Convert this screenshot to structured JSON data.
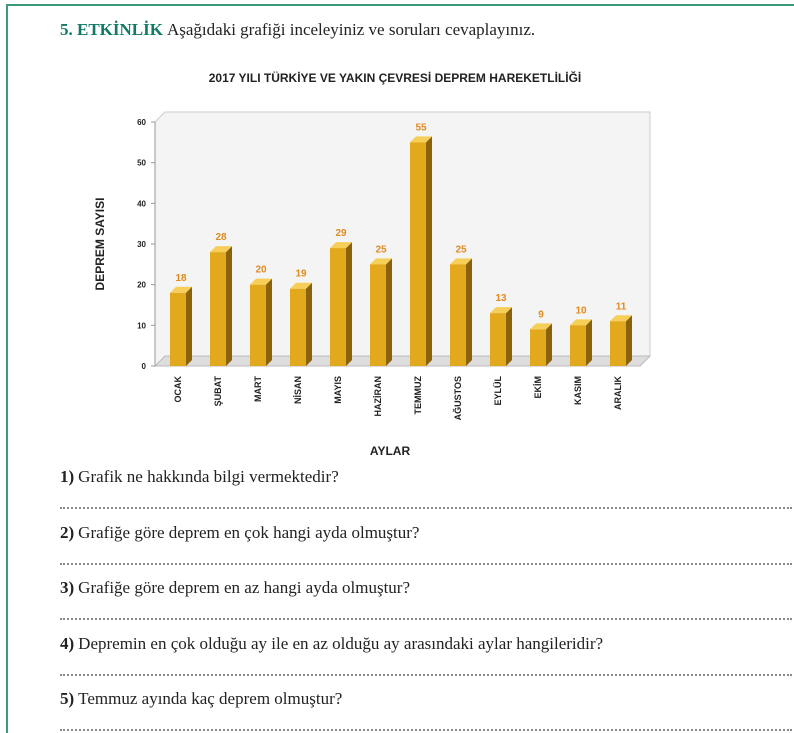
{
  "activity": {
    "label": "5. ETKİNLİK",
    "instruction": "Aşağıdaki grafiği inceleyiniz ve soruları cevaplayınız."
  },
  "chart_data": {
    "type": "bar",
    "title": "2017 YILI TÜRKİYE VE YAKIN ÇEVRESİ DEPREM HAREKETLİLİĞİ",
    "xlabel": "AYLAR",
    "ylabel": "DEPREM SAYISI",
    "categories": [
      "OCAK",
      "ŞUBAT",
      "MART",
      "NİSAN",
      "MAYIS",
      "HAZİRAN",
      "TEMMUZ",
      "AĞUSTOS",
      "EYLÜL",
      "EKİM",
      "KASIM",
      "ARALIK"
    ],
    "values": [
      18,
      28,
      20,
      19,
      29,
      25,
      55,
      25,
      13,
      9,
      10,
      11
    ],
    "color": "#e3a91c",
    "label_color": "#e08a20",
    "ylim": [
      0,
      60
    ],
    "yticks": [
      0,
      10,
      20,
      30,
      40,
      50,
      60
    ]
  },
  "questions": [
    {
      "number": "1)",
      "text": "Grafik ne hakkında bilgi vermektedir?"
    },
    {
      "number": "2)",
      "text": "Grafiğe göre  deprem en çok hangi ayda olmuştur?"
    },
    {
      "number": "3)",
      "text": "Grafiğe göre  deprem en az hangi ayda olmuştur?"
    },
    {
      "number": "4)",
      "text": "Depremin en çok olduğu ay ile en az olduğu ay arasındaki aylar hangileridir?"
    },
    {
      "number": "5)",
      "text": "Temmuz ayında kaç deprem olmuştur?"
    }
  ]
}
